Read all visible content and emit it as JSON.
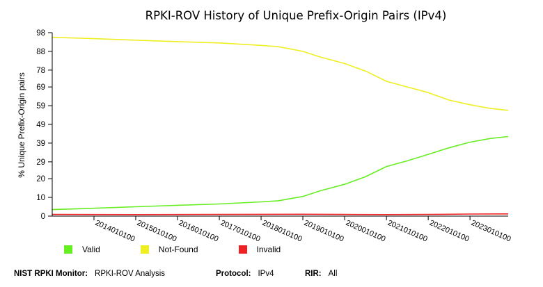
{
  "chart_data": {
    "type": "line",
    "title": "RPKI-ROV History of Unique Prefix-Origin Pairs (IPv4)",
    "ylabel": "% Unique Prefix-Origin pairs",
    "xlabel": "",
    "ylim": [
      0,
      98
    ],
    "yticks": [
      0,
      10,
      20,
      29,
      39,
      49,
      59,
      69,
      78,
      88,
      98
    ],
    "xlim": [
      "2013-01-01",
      "2023-12-01"
    ],
    "xticks": [
      "2014010100",
      "2015010100",
      "2016010100",
      "2017010100",
      "2018010100",
      "2019010100",
      "2020010100",
      "2021010100",
      "2022010100",
      "2023010100"
    ],
    "xtick_dates": [
      "2014-01-01",
      "2015-01-01",
      "2016-01-01",
      "2017-01-01",
      "2018-01-01",
      "2019-01-01",
      "2020-01-01",
      "2021-01-01",
      "2022-01-01",
      "2023-01-01"
    ],
    "grid": false,
    "legend_position": "bottom",
    "series": [
      {
        "name": "Valid",
        "color": "#66ee22",
        "x": [
          "2013-01-01",
          "2014-01-01",
          "2015-01-01",
          "2016-01-01",
          "2017-01-01",
          "2018-01-01",
          "2018-06-01",
          "2019-01-01",
          "2019-06-01",
          "2020-01-01",
          "2020-07-01",
          "2021-01-01",
          "2021-07-01",
          "2022-01-01",
          "2022-07-01",
          "2023-01-01",
          "2023-07-01",
          "2023-12-01"
        ],
        "values": [
          3.5,
          4.2,
          5.0,
          5.8,
          6.5,
          7.6,
          8.2,
          10.5,
          13.5,
          17.0,
          21.0,
          26.5,
          29.5,
          33.0,
          36.5,
          39.5,
          41.5,
          42.5
        ]
      },
      {
        "name": "Not-Found",
        "color": "#eeee22",
        "x": [
          "2013-01-01",
          "2014-01-01",
          "2015-01-01",
          "2016-01-01",
          "2017-01-01",
          "2018-01-01",
          "2018-06-01",
          "2019-01-01",
          "2019-06-01",
          "2020-01-01",
          "2020-07-01",
          "2021-01-01",
          "2021-07-01",
          "2022-01-01",
          "2022-07-01",
          "2023-01-01",
          "2023-07-01",
          "2023-12-01"
        ],
        "values": [
          95.5,
          94.8,
          94.0,
          93.2,
          92.5,
          91.2,
          90.5,
          88.0,
          85.0,
          81.5,
          77.5,
          72.0,
          69.0,
          66.0,
          62.0,
          59.5,
          57.5,
          56.5
        ]
      },
      {
        "name": "Invalid",
        "color": "#ee2222",
        "x": [
          "2013-01-01",
          "2015-01-01",
          "2017-01-01",
          "2019-01-01",
          "2020-01-01",
          "2021-01-01",
          "2022-01-01",
          "2023-01-01",
          "2023-12-01"
        ],
        "values": [
          0.9,
          0.8,
          0.9,
          1.0,
          0.9,
          0.8,
          0.9,
          1.1,
          1.2
        ]
      }
    ]
  },
  "legend": [
    {
      "label": "Valid",
      "color": "#66ee22"
    },
    {
      "label": "Not-Found",
      "color": "#eeee22"
    },
    {
      "label": "Invalid",
      "color": "#ee2222"
    }
  ],
  "footer": {
    "monitor_label": "NIST RPKI Monitor:",
    "monitor_value": "RPKI-ROV Analysis",
    "protocol_label": "Protocol:",
    "protocol_value": "IPv4",
    "rir_label": "RIR:",
    "rir_value": "All"
  }
}
